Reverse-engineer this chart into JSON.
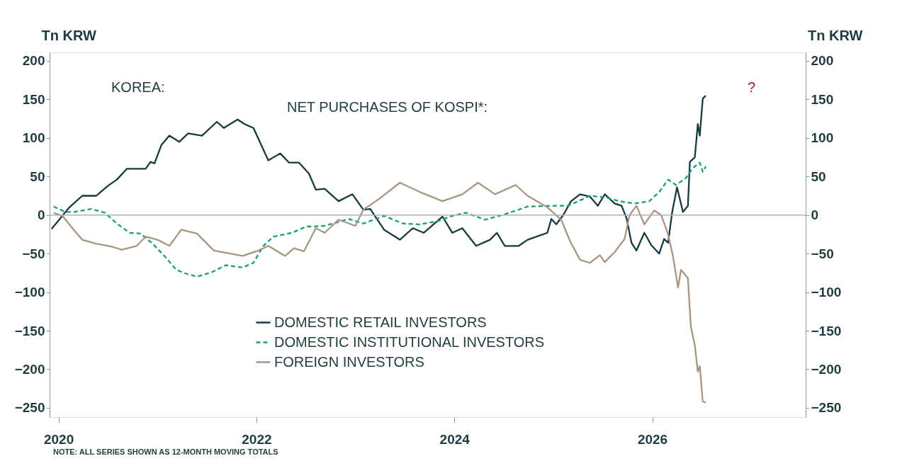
{
  "chart_data": {
    "type": "line",
    "title": "KOREA:",
    "subtitle": "NET PURCHASES OF KOSPI*:",
    "ylabel": "Tn KRW",
    "y2label": "Tn KRW",
    "xlim": [
      2019.91,
      2027.55
    ],
    "xticks": [
      2020,
      2022,
      2024,
      2026
    ],
    "ylim": [
      -262,
      211
    ],
    "yticks": [
      -250,
      -200,
      -150,
      -100,
      -50,
      0,
      50,
      100,
      150,
      200
    ],
    "y2lim": [
      -262,
      211
    ],
    "y2ticks": [
      -250,
      -200,
      -150,
      -100,
      -50,
      0,
      50,
      100,
      150,
      200
    ],
    "grid": false,
    "legend": "bottom left",
    "marker": "none",
    "ref_lines": [
      {
        "axis": "y",
        "value": 0,
        "color": "#a9b3b5"
      }
    ],
    "annotations": [
      "NOTE: ALL SERIES SHOWN AS 12-MONTH MOVING TOTALS",
      "?"
    ],
    "series": [
      {
        "name": "DOMESTIC RETAIL INVESTORS",
        "color": "#163a3f",
        "line_style": "solid",
        "x": [
          2019.93,
          2020.02,
          2020.11,
          2020.24,
          2020.38,
          2020.5,
          2020.59,
          2020.69,
          2020.88,
          2020.93,
          2020.97,
          2021.04,
          2021.12,
          2021.22,
          2021.31,
          2021.45,
          2021.6,
          2021.67,
          2021.81,
          2021.88,
          2021.97,
          2022.12,
          2022.24,
          2022.33,
          2022.43,
          2022.53,
          2022.6,
          2022.69,
          2022.83,
          2022.97,
          2023.08,
          2023.15,
          2023.29,
          2023.45,
          2023.58,
          2023.69,
          2023.88,
          2023.98,
          2024.08,
          2024.22,
          2024.36,
          2024.43,
          2024.51,
          2024.65,
          2024.74,
          2024.94,
          2024.98,
          2025.03,
          2025.1,
          2025.18,
          2025.27,
          2025.37,
          2025.45,
          2025.52,
          2025.62,
          2025.69,
          2025.74,
          2025.79,
          2025.84,
          2025.92,
          2025.99,
          2026.07,
          2026.12,
          2026.16,
          2026.2,
          2026.25,
          2026.31,
          2026.36,
          2026.38,
          2026.43,
          2026.46,
          2026.48,
          2026.51,
          2026.54
        ],
        "values": [
          -18,
          -4,
          10,
          25,
          25,
          38,
          46,
          60,
          60,
          69,
          67,
          91,
          103,
          95,
          106,
          103,
          121,
          113,
          124,
          118,
          113,
          71,
          80,
          68,
          68,
          54,
          33,
          34,
          18,
          27,
          7,
          8,
          -19,
          -32,
          -17,
          -23,
          -2,
          -23,
          -17,
          -40,
          -32,
          -23,
          -40,
          -40,
          -32,
          -23,
          -5,
          -12,
          0,
          18,
          27,
          24,
          12,
          27,
          15,
          12,
          -4,
          -36,
          -46,
          -23,
          -39,
          -50,
          -31,
          -36,
          3,
          36,
          4,
          12,
          69,
          75,
          118,
          103,
          151,
          155
        ]
      },
      {
        "name": "DOMESTIC INSTITUTIONAL INVESTORS",
        "color": "#1a9e7a",
        "line_style": "dashed",
        "x": [
          2019.95,
          2020.07,
          2020.16,
          2020.33,
          2020.47,
          2020.59,
          2020.72,
          2020.83,
          2020.95,
          2021.07,
          2021.19,
          2021.29,
          2021.4,
          2021.55,
          2021.69,
          2021.86,
          2021.97,
          2022.07,
          2022.17,
          2022.36,
          2022.5,
          2022.69,
          2022.93,
          2023.08,
          2023.29,
          2023.48,
          2023.65,
          2023.83,
          2023.98,
          2024.12,
          2024.31,
          2024.51,
          2024.74,
          2024.98,
          2025.15,
          2025.37,
          2025.52,
          2025.67,
          2025.82,
          2025.97,
          2026.07,
          2026.16,
          2026.24,
          2026.34,
          2026.41,
          2026.48,
          2026.51,
          2026.54
        ],
        "values": [
          11,
          4,
          4,
          8,
          3,
          -11,
          -23,
          -24,
          -37,
          -53,
          -71,
          -76,
          -80,
          -74,
          -65,
          -68,
          -62,
          -40,
          -28,
          -23,
          -15,
          -14,
          -5,
          -11,
          -1,
          -11,
          -12,
          -8,
          -1,
          3,
          -6,
          1,
          11,
          12,
          12,
          25,
          23,
          18,
          15,
          18,
          30,
          46,
          39,
          48,
          61,
          68,
          56,
          63
        ]
      },
      {
        "name": "FOREIGN INVESTORS",
        "color": "#a89583",
        "line_style": "solid",
        "x": [
          2019.95,
          2020.04,
          2020.14,
          2020.24,
          2020.38,
          2020.54,
          2020.64,
          2020.79,
          2020.88,
          2021.0,
          2021.12,
          2021.24,
          2021.4,
          2021.57,
          2021.86,
          2022.02,
          2022.12,
          2022.29,
          2022.38,
          2022.48,
          2022.6,
          2022.69,
          2022.83,
          2023.0,
          2023.08,
          2023.24,
          2023.45,
          2023.65,
          2023.88,
          2024.08,
          2024.24,
          2024.41,
          2024.62,
          2024.74,
          2024.94,
          2025.08,
          2025.17,
          2025.27,
          2025.37,
          2025.47,
          2025.52,
          2025.62,
          2025.72,
          2025.77,
          2025.84,
          2025.92,
          2026.02,
          2026.09,
          2026.16,
          2026.21,
          2026.26,
          2026.29,
          2026.36,
          2026.39,
          2026.43,
          2026.46,
          2026.48,
          2026.51,
          2026.54
        ],
        "values": [
          3,
          -1,
          -17,
          -32,
          -37,
          -41,
          -45,
          -40,
          -28,
          -32,
          -40,
          -19,
          -24,
          -46,
          -53,
          -46,
          -40,
          -53,
          -43,
          -47,
          -17,
          -23,
          -6,
          -14,
          7,
          21,
          42,
          30,
          18,
          27,
          42,
          27,
          39,
          25,
          10,
          -6,
          -34,
          -58,
          -62,
          -52,
          -61,
          -48,
          -31,
          0,
          12,
          -12,
          6,
          0,
          -25,
          -54,
          -94,
          -71,
          -82,
          -145,
          -169,
          -203,
          -196,
          -242,
          -243
        ]
      }
    ]
  }
}
